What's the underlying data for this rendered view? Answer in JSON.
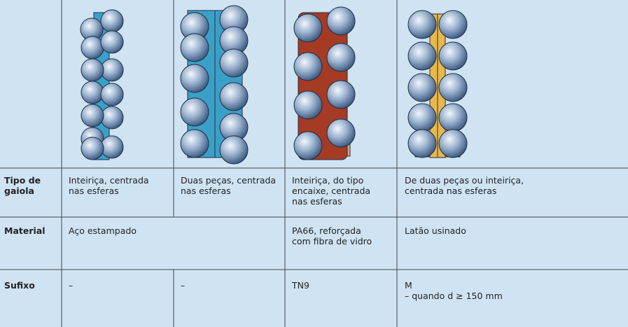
{
  "table": {
    "rows": [
      {
        "header": [
          "Tipo de",
          "gaiola"
        ],
        "cells": [
          [
            "Inteiriça, centrada",
            "nas esferas"
          ],
          [
            "Duas peças, centrada",
            "nas esferas"
          ],
          [
            "Inteiriça, do tipo",
            "encaixe, centrada",
            "nas esferas"
          ],
          [
            "De duas peças ou inteiriça,",
            "centrada nas esferas"
          ]
        ]
      },
      {
        "header": [
          "Material"
        ],
        "cells": [
          [
            "Aço estampado"
          ],
          [
            "PA66, reforçada",
            "com fibra de vidro"
          ],
          [
            "Latão usinado"
          ]
        ]
      },
      {
        "header": [
          "Sufixo"
        ],
        "cells": [
          [
            "–"
          ],
          [
            "–"
          ],
          [
            "TN9"
          ],
          [
            "M",
            "– quando d ≥ 150 mm"
          ]
        ]
      }
    ]
  }
}
